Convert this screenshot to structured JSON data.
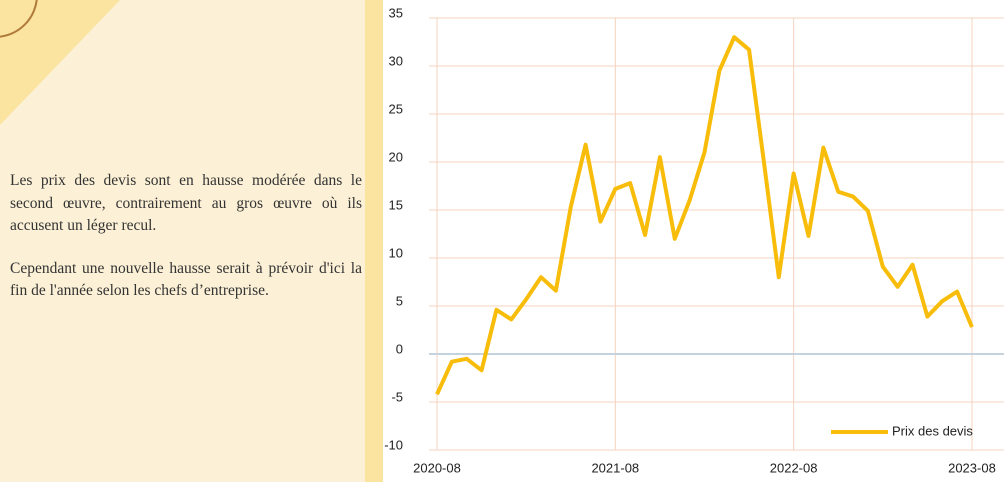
{
  "text": {
    "paragraphs": [
      "Les prix des devis sont en hausse modérée dans le second œuvre, contrairement au gros œuvre où ils accusent un léger recul.",
      "Cependant une nouvelle hausse serait à prévoir d'ici la fin de l'année selon les chefs d’entreprise."
    ]
  },
  "chart_data": {
    "type": "line",
    "x": [
      "2020-08",
      "2020-09",
      "2020-10",
      "2020-11",
      "2020-12",
      "2021-01",
      "2021-02",
      "2021-03",
      "2021-04",
      "2021-05",
      "2021-06",
      "2021-07",
      "2021-08",
      "2021-09",
      "2021-10",
      "2021-11",
      "2021-12",
      "2022-01",
      "2022-02",
      "2022-03",
      "2022-04",
      "2022-05",
      "2022-06",
      "2022-07",
      "2022-08",
      "2022-09",
      "2022-10",
      "2022-11",
      "2022-12",
      "2023-01",
      "2023-02",
      "2023-03",
      "2023-04",
      "2023-05",
      "2023-06",
      "2023-07",
      "2023-08"
    ],
    "series": [
      {
        "name": "Prix des devis",
        "color": "#f7bd0a",
        "values": [
          -4.2,
          -0.8,
          -0.5,
          -1.7,
          4.6,
          3.6,
          5.7,
          8.0,
          6.6,
          15.3,
          21.8,
          13.8,
          17.2,
          17.8,
          12.4,
          20.5,
          12.0,
          16.0,
          21.0,
          29.5,
          33.0,
          31.7,
          20.0,
          8.0,
          18.8,
          12.3,
          21.5,
          16.9,
          16.4,
          14.9,
          9.1,
          7.0,
          9.3,
          3.9,
          5.5,
          6.5,
          2.8
        ]
      }
    ],
    "ylim": [
      -10,
      35
    ],
    "yticks": [
      -10,
      -5,
      0,
      5,
      10,
      15,
      20,
      25,
      30,
      35
    ],
    "xticks": [
      "2020-08",
      "2021-08",
      "2022-08",
      "2023-08"
    ],
    "grid": true,
    "legend": "bottom-right"
  }
}
